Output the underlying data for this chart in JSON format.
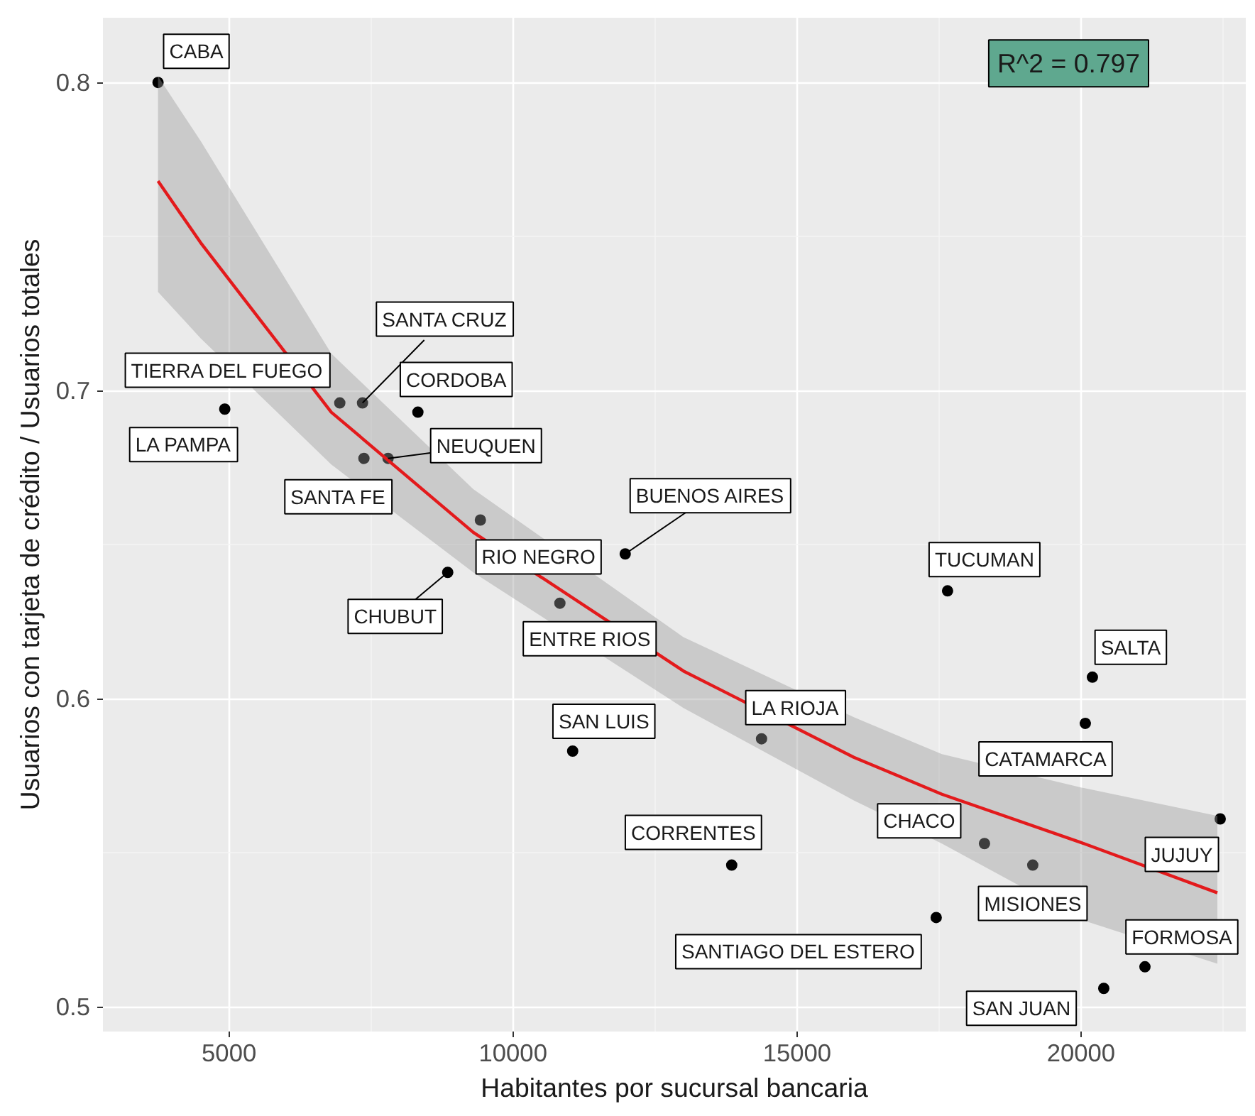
{
  "chart_data": {
    "type": "scatter",
    "xlabel": "Habitantes por sucursal bancaria",
    "ylabel": "Usuarios con tarjeta de crédito / Usuarios totales",
    "xlim": [
      2780,
      22900
    ],
    "ylim": [
      0.492,
      0.821
    ],
    "xticks": [
      5000,
      10000,
      15000,
      20000
    ],
    "yticks": [
      0.5,
      0.6,
      0.7,
      0.8
    ],
    "grid": true,
    "series": [
      {
        "marker": "circle",
        "color": "#000000",
        "x": [
          3750,
          4925,
          6950,
          7350,
          8325,
          7375,
          7800,
          9425,
          8850,
          10825,
          11975,
          11050,
          17650,
          20200,
          20075,
          14375,
          18300,
          19150,
          22450,
          13850,
          17450,
          21125,
          20400
        ],
        "values": [
          0.8,
          0.694,
          0.696,
          0.696,
          0.693,
          0.678,
          0.678,
          0.658,
          0.641,
          0.631,
          0.647,
          0.583,
          0.635,
          0.607,
          0.592,
          0.587,
          0.553,
          0.546,
          0.561,
          0.546,
          0.529,
          0.513,
          0.506
        ]
      },
      {
        "type": "line",
        "color": "#e31a1c",
        "x": [
          3750,
          4500,
          6800,
          9300,
          13000,
          16000,
          17550,
          20050,
          22400
        ],
        "values": [
          0.768,
          0.748,
          0.693,
          0.654,
          0.609,
          0.581,
          0.569,
          0.553,
          0.537
        ],
        "lower": [
          0.732,
          0.717,
          0.676,
          0.641,
          0.597,
          0.567,
          0.553,
          0.528,
          0.514
        ],
        "upper": [
          0.802,
          0.781,
          0.712,
          0.668,
          0.62,
          0.594,
          0.582,
          0.571,
          0.562
        ]
      }
    ],
    "annotations": [
      {
        "text": "CABA",
        "x": 3750,
        "y": 0.8
      },
      {
        "text": "LA PAMPA",
        "x": 4925,
        "y": 0.694
      },
      {
        "text": "TIERRA DEL FUEGO",
        "x": 6950,
        "y": 0.696
      },
      {
        "text": "SANTA CRUZ",
        "x": 7350,
        "y": 0.696
      },
      {
        "text": "CORDOBA",
        "x": 8325,
        "y": 0.693
      },
      {
        "text": "SANTA FE",
        "x": 7375,
        "y": 0.678
      },
      {
        "text": "NEUQUEN",
        "x": 7800,
        "y": 0.678
      },
      {
        "text": "RIO NEGRO",
        "x": 9425,
        "y": 0.658
      },
      {
        "text": "CHUBUT",
        "x": 8850,
        "y": 0.641
      },
      {
        "text": "ENTRE RIOS",
        "x": 10825,
        "y": 0.631
      },
      {
        "text": "BUENOS AIRES",
        "x": 11975,
        "y": 0.647
      },
      {
        "text": "SAN LUIS",
        "x": 11050,
        "y": 0.583
      },
      {
        "text": "TUCUMAN",
        "x": 17650,
        "y": 0.635
      },
      {
        "text": "SALTA",
        "x": 20200,
        "y": 0.607
      },
      {
        "text": "CATAMARCA",
        "x": 20075,
        "y": 0.592
      },
      {
        "text": "LA RIOJA",
        "x": 14375,
        "y": 0.587
      },
      {
        "text": "CHACO",
        "x": 18300,
        "y": 0.553
      },
      {
        "text": "MISIONES",
        "x": 19150,
        "y": 0.546
      },
      {
        "text": "JUJUY",
        "x": 22450,
        "y": 0.561
      },
      {
        "text": "CORRENTES",
        "x": 13850,
        "y": 0.546
      },
      {
        "text": "SANTIAGO DEL ESTERO",
        "x": 17450,
        "y": 0.529
      },
      {
        "text": "FORMOSA",
        "x": 21125,
        "y": 0.513
      },
      {
        "text": "SAN JUAN",
        "x": 20400,
        "y": 0.506
      },
      "R^2 = 0.797"
    ]
  }
}
